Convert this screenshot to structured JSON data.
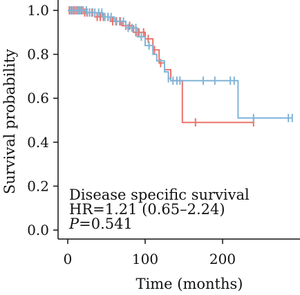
{
  "chart_data": {
    "type": "line",
    "subtype": "kaplan-meier",
    "xlabel": "Time (months)",
    "ylabel": "Survival probability",
    "xlim": [
      -10,
      300
    ],
    "ylim": [
      0,
      1.0
    ],
    "xticks": [
      0,
      100,
      200
    ],
    "yticks": [
      0.0,
      0.2,
      0.4,
      0.6,
      0.8,
      1.0
    ],
    "ytick_labels": [
      "0.0",
      "0.2",
      "0.4",
      "0.6",
      "0.8",
      "1.0"
    ],
    "annotations": {
      "title": "Disease specific survival",
      "hr": "HR=1.21 (0.65–2.24)",
      "p_symbol": "P",
      "p_value": "=0.541"
    },
    "series": [
      {
        "color": "#e8736b",
        "steps": [
          [
            0,
            1.0
          ],
          [
            20,
            0.99
          ],
          [
            35,
            0.97
          ],
          [
            55,
            0.95
          ],
          [
            70,
            0.93
          ],
          [
            85,
            0.9
          ],
          [
            100,
            0.87
          ],
          [
            110,
            0.82
          ],
          [
            118,
            0.76
          ],
          [
            125,
            0.73
          ],
          [
            133,
            0.68
          ],
          [
            148,
            0.49
          ],
          [
            240,
            0.49
          ]
        ],
        "censor_times": [
          2,
          5,
          8,
          12,
          15,
          18,
          22,
          25,
          28,
          32,
          38,
          42,
          46,
          52,
          58,
          63,
          68,
          75,
          80,
          88,
          92,
          98,
          104,
          112,
          120,
          165,
          240
        ]
      },
      {
        "color": "#7fb4d8",
        "steps": [
          [
            0,
            1.0
          ],
          [
            25,
            0.99
          ],
          [
            45,
            0.97
          ],
          [
            60,
            0.95
          ],
          [
            75,
            0.92
          ],
          [
            90,
            0.88
          ],
          [
            100,
            0.84
          ],
          [
            110,
            0.8
          ],
          [
            115,
            0.77
          ],
          [
            125,
            0.72
          ],
          [
            130,
            0.69
          ],
          [
            133,
            0.68
          ],
          [
            220,
            0.51
          ],
          [
            290,
            0.51
          ]
        ],
        "censor_times": [
          3,
          7,
          10,
          14,
          17,
          20,
          24,
          28,
          31,
          35,
          40,
          44,
          48,
          52,
          56,
          62,
          67,
          72,
          78,
          83,
          88,
          95,
          105,
          130,
          136,
          141,
          145,
          175,
          190,
          210,
          215,
          240,
          285,
          290
        ]
      }
    ]
  }
}
